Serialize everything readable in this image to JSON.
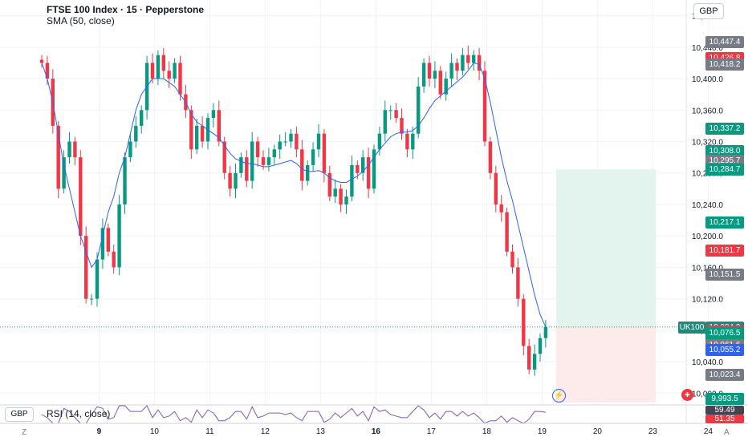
{
  "header": {
    "title": "FTSE 100 Index · 15 · Pepperstone",
    "indicator": "SMA (50, close)",
    "currency_button": "GBP"
  },
  "rsi_panel": {
    "currency": "GBP",
    "title": "RSI (14, close)",
    "labels": [
      "59.49",
      "51.35"
    ]
  },
  "symbol_tag": "UK100",
  "countdown": "06:43",
  "corners": {
    "left": "Z",
    "right": "A"
  },
  "icons": {
    "alert": "lightning-icon",
    "flag": "uk-flag-icon"
  },
  "colors": {
    "up": "#089981",
    "down": "#f23645",
    "sma": "#2962ff",
    "target_zone": "#e3f4ef",
    "stop_zone": "#fdeaea"
  },
  "price_tags": [
    {
      "label": "10,447.4",
      "bg": "#787b86"
    },
    {
      "label": "10,426.8",
      "bg": "#f23645"
    },
    {
      "label": "10,418.2",
      "bg": "#787b86"
    },
    {
      "label": "10,337.2",
      "bg": "#089981"
    },
    {
      "label": "10,308.0",
      "bg": "#089981"
    },
    {
      "label": "10,295.7",
      "bg": "#787b86"
    },
    {
      "label": "10,284.7",
      "bg": "#089981"
    },
    {
      "label": "10,217.1",
      "bg": "#089981"
    },
    {
      "label": "10,181.7",
      "bg": "#f23645"
    },
    {
      "label": "10,151.5",
      "bg": "#787b86"
    },
    {
      "label": "10,084.0",
      "bg": "#1e8a7a"
    },
    {
      "label": "10,078.9",
      "bg": "#f23645"
    },
    {
      "label": "10,076.5",
      "bg": "#089981"
    },
    {
      "label": "10,061.6",
      "bg": "#787b86"
    },
    {
      "label": "10,055.2",
      "bg": "#2962ff"
    },
    {
      "label": "10,023.4",
      "bg": "#787b86"
    },
    {
      "label": "9,993.5",
      "bg": "#089981"
    },
    {
      "label": "59.49",
      "bg": "#434651"
    },
    {
      "label": "51.35",
      "bg": "#f23645"
    }
  ],
  "chart_data": {
    "type": "candlestick",
    "title": "FTSE 100 Index · 15 · Pepperstone",
    "y_ticks": [
      "10,480.0",
      "10,440.0",
      "10,400.0",
      "10,360.0",
      "10,320.0",
      "10,280.0",
      "10,240.0",
      "10,200.0",
      "10,160.0",
      "10,120.0",
      "10,080.0",
      "10,040.0",
      "10,000.0"
    ],
    "ylim": [
      9985,
      10500
    ],
    "x_ticks": [
      {
        "label": "9",
        "bar": 6,
        "bold": true
      },
      {
        "label": "10",
        "bar": 16
      },
      {
        "label": "11",
        "bar": 26
      },
      {
        "label": "12",
        "bar": 36
      },
      {
        "label": "13",
        "bar": 46
      },
      {
        "label": "16",
        "bar": 56,
        "bold": true
      },
      {
        "label": "17",
        "bar": 66
      },
      {
        "label": "18",
        "bar": 76
      },
      {
        "label": "19",
        "bar": 86
      },
      {
        "label": "20",
        "bar": 96
      },
      {
        "label": "23",
        "bar": 106
      },
      {
        "label": "24",
        "bar": 116
      }
    ],
    "close": [
      10420,
      10400,
      10340,
      10260,
      10300,
      10320,
      10300,
      10200,
      10120,
      10120,
      10170,
      10210,
      10180,
      10160,
      10240,
      10300,
      10320,
      10340,
      10360,
      10420,
      10400,
      10430,
      10410,
      10400,
      10420,
      10380,
      10360,
      10310,
      10340,
      10320,
      10350,
      10360,
      10320,
      10280,
      10260,
      10280,
      10300,
      10270,
      10320,
      10300,
      10290,
      10300,
      10310,
      10320,
      10320,
      10330,
      10310,
      10270,
      10290,
      10310,
      10330,
      10280,
      10250,
      10260,
      10240,
      10250,
      10290,
      10280,
      10300,
      10260,
      10310,
      10330,
      10360,
      10360,
      10350,
      10330,
      10310,
      10330,
      10390,
      10420,
      10400,
      10410,
      10380,
      10400,
      10420,
      10410,
      10430,
      10420,
      10430,
      10410,
      10320,
      10280,
      10240,
      10230,
      10180,
      10160,
      10120,
      10060,
      10030,
      10050,
      10070,
      10084
    ],
    "sma_50": [
      10420,
      10400,
      10370,
      10330,
      10290,
      10260,
      10230,
      10200,
      10180,
      10160,
      10170,
      10200,
      10230,
      10250,
      10280,
      10300,
      10330,
      10360,
      10380,
      10390,
      10400,
      10400,
      10400,
      10395,
      10390,
      10380,
      10370,
      10355,
      10345,
      10340,
      10335,
      10330,
      10325,
      10315,
      10305,
      10298,
      10295,
      10292,
      10292,
      10290,
      10288,
      10288,
      10290,
      10292,
      10294,
      10296,
      10292,
      10285,
      10282,
      10282,
      10283,
      10280,
      10274,
      10270,
      10268,
      10268,
      10272,
      10276,
      10282,
      10290,
      10300,
      10310,
      10318,
      10326,
      10330,
      10332,
      10332,
      10334,
      10340,
      10350,
      10362,
      10372,
      10378,
      10384,
      10390,
      10396,
      10402,
      10410,
      10420,
      10418,
      10400,
      10370,
      10335,
      10300,
      10270,
      10245,
      10215,
      10185,
      10155,
      10125,
      10100,
      10084
    ],
    "position": {
      "entry": 10084.0,
      "stop": 10023.4,
      "target": 10284.7
    },
    "current_price": 10084.0,
    "rsi": {
      "name": "RSI (14, close)",
      "levels": [
        59.49,
        51.35
      ]
    }
  }
}
